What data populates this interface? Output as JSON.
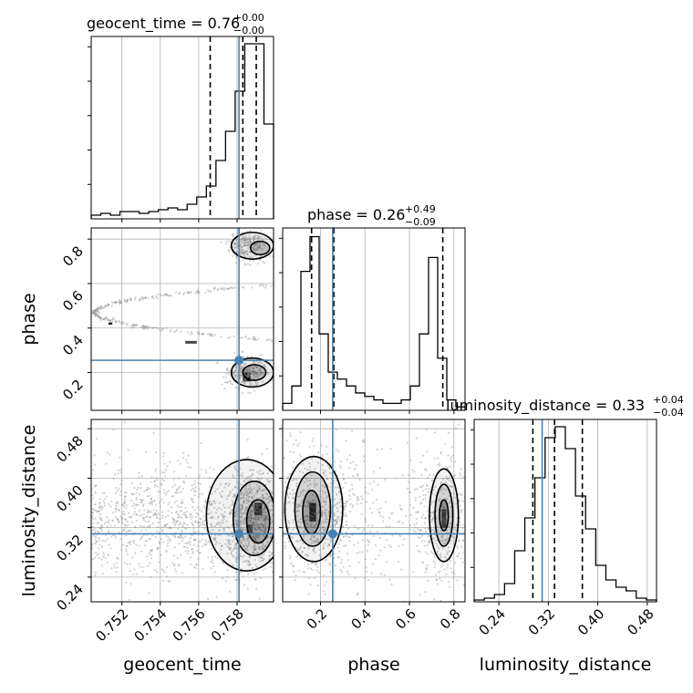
{
  "chart_data": {
    "type": "corner",
    "parameters": [
      "geocent_time",
      "phase",
      "luminosity_distance"
    ],
    "colors": {
      "truth": "#4682b4",
      "hist": "#000000",
      "grid": "#b0b0b0",
      "samples": "#9a9a9a"
    },
    "titles": [
      {
        "name": "geocent_time",
        "median": "0.76",
        "plus": "+0.00",
        "minus": "−0.00"
      },
      {
        "name": "phase",
        "median": "0.26",
        "plus": "+0.49",
        "minus": "−0.09"
      },
      {
        "name": "luminosity_distance",
        "median": "0.33",
        "plus": "+0.04",
        "minus": "−0.04"
      }
    ],
    "truths": [
      0.7581,
      0.255,
      0.31
    ],
    "ranges": [
      [
        0.7504,
        0.7599
      ],
      [
        0.03,
        0.85
      ],
      [
        0.2,
        0.495
      ]
    ],
    "ticks": [
      [
        {
          "v": 0.752,
          "label": "0.752"
        },
        {
          "v": 0.754,
          "label": "0.754"
        },
        {
          "v": 0.756,
          "label": "0.756"
        },
        {
          "v": 0.758,
          "label": "0.758"
        }
      ],
      [
        {
          "v": 0.2,
          "label": "0.2"
        },
        {
          "v": 0.4,
          "label": "0.4"
        },
        {
          "v": 0.6,
          "label": "0.6"
        },
        {
          "v": 0.8,
          "label": "0.8"
        }
      ],
      [
        {
          "v": 0.24,
          "label": "0.24"
        },
        {
          "v": 0.32,
          "label": "0.32"
        },
        {
          "v": 0.4,
          "label": "0.40"
        },
        {
          "v": 0.48,
          "label": "0.48"
        }
      ]
    ],
    "quantiles": [
      [
        0.7566,
        0.7583,
        0.759
      ],
      [
        0.16,
        0.26,
        0.75
      ],
      [
        0.295,
        0.33,
        0.375
      ]
    ],
    "histograms": [
      {
        "edges_range": [
          0.7504,
          0.7599
        ],
        "counts": [
          2,
          3,
          2,
          4,
          4,
          3,
          4,
          5,
          6,
          5,
          8,
          12,
          18,
          32,
          48,
          70,
          96,
          96,
          52
        ]
      },
      {
        "edges_range": [
          0.03,
          0.85
        ],
        "counts": [
          4,
          14,
          80,
          100,
          44,
          22,
          18,
          14,
          10,
          8,
          6,
          4,
          4,
          6,
          14,
          44,
          88,
          30,
          6,
          2
        ]
      },
      {
        "edges_range": [
          0.2,
          0.495
        ],
        "counts": [
          1,
          2,
          4,
          10,
          28,
          46,
          68,
          90,
          96,
          84,
          58,
          40,
          20,
          12,
          8,
          6,
          2,
          1
        ]
      }
    ],
    "histogram_max": [
      100,
      105,
      100
    ],
    "grid": true
  }
}
